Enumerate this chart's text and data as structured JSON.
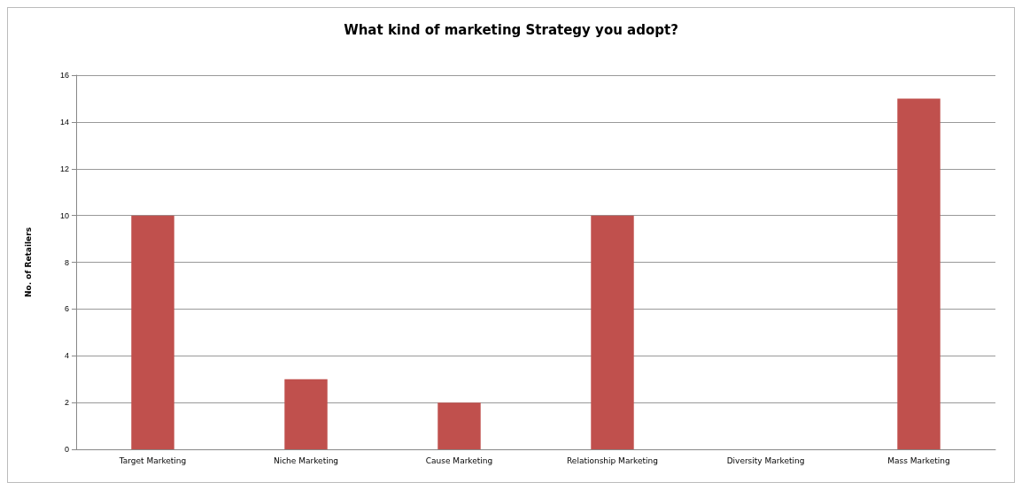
{
  "chart_data": {
    "type": "bar",
    "title": "What kind of marketing Strategy you adopt?",
    "ylabel": "No. of Retailers",
    "categories": [
      "Target Marketing",
      "Niche Marketing",
      "Cause Marketing",
      "Relationship Marketing",
      "Diversity Marketing",
      "Mass Marketing"
    ],
    "values": [
      10,
      3,
      2,
      10,
      0,
      15
    ],
    "color": "#c0504d",
    "ylim": [
      0,
      16
    ],
    "yticks": [
      0,
      2,
      4,
      6,
      8,
      10,
      12,
      14,
      16
    ],
    "grid": "y"
  }
}
